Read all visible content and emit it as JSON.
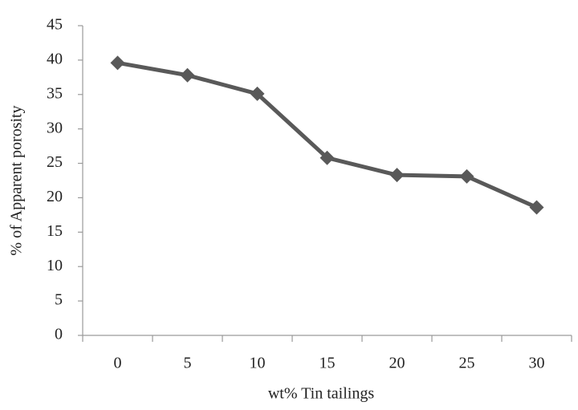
{
  "chart_data": {
    "type": "line",
    "x_label": "wt% Tin tailings",
    "y_label": "% of Apparent porosity",
    "categories": [
      "0",
      "5",
      "10",
      "15",
      "20",
      "25",
      "30"
    ],
    "series": [
      {
        "name": "Apparent porosity",
        "color": "#595959",
        "values": [
          39.6,
          37.8,
          35.1,
          25.8,
          23.3,
          23.1,
          18.6
        ]
      }
    ],
    "ylim": [
      0,
      45
    ],
    "yticks": [
      0,
      5,
      10,
      15,
      20,
      25,
      30,
      35,
      40,
      45
    ],
    "grid": false
  }
}
